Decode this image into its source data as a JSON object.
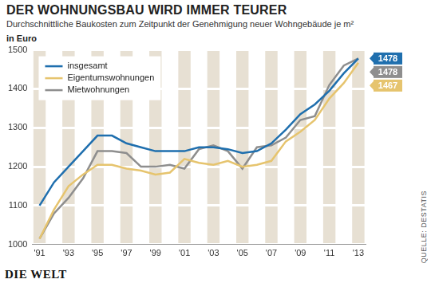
{
  "chart_data": {
    "type": "line",
    "title": "DER WOHNUNGSBAU WIRD IMMER TEURER",
    "subtitle": "Durchschnittliche Baukosten zum Zeitpunkt der Genehmigung neuer Wohngebäude je m²",
    "y_label": "in Euro",
    "source": "QUELLE: DESTATIS",
    "brand": "DIE WELT",
    "categories": [
      "'91",
      null,
      "'93",
      null,
      "'95",
      null,
      "'97",
      null,
      "'99",
      null,
      "'01",
      null,
      "'03",
      null,
      "'05",
      null,
      "'07",
      null,
      "'09",
      null,
      "'11",
      null,
      "'13"
    ],
    "series": [
      {
        "name": "insgesamt",
        "color": "#1f6fae",
        "values": [
          1100,
          1160,
          1200,
          1240,
          1280,
          1280,
          1260,
          1250,
          1240,
          1240,
          1240,
          1250,
          1250,
          1245,
          1235,
          1240,
          1260,
          1295,
          1335,
          1360,
          1395,
          1440,
          1478
        ],
        "value_labels": [
          null,
          null,
          null,
          null,
          null,
          null,
          null,
          null,
          null,
          null,
          null,
          null,
          null,
          null,
          null,
          null,
          null,
          null,
          null,
          null,
          null,
          null,
          "1478"
        ]
      },
      {
        "name": "Eigentumswohnungen",
        "color": "#e6c46e",
        "values": [
          1015,
          1090,
          1150,
          1180,
          1205,
          1205,
          1195,
          1190,
          1180,
          1185,
          1220,
          1210,
          1205,
          1215,
          1200,
          1205,
          1215,
          1265,
          1290,
          1320,
          1375,
          1415,
          1467
        ],
        "value_labels": [
          null,
          null,
          null,
          null,
          null,
          null,
          null,
          null,
          null,
          null,
          null,
          null,
          null,
          null,
          null,
          null,
          null,
          null,
          null,
          null,
          null,
          null,
          "1467"
        ]
      },
      {
        "name": "Mietwohnungen",
        "color": "#8e8e8e",
        "values": [
          1015,
          1080,
          1120,
          1170,
          1240,
          1240,
          1235,
          1200,
          1200,
          1205,
          1195,
          1245,
          1255,
          1240,
          1195,
          1250,
          1255,
          1275,
          1320,
          1330,
          1410,
          1460,
          1478
        ],
        "value_labels": [
          null,
          null,
          null,
          null,
          null,
          null,
          null,
          null,
          null,
          null,
          null,
          null,
          null,
          null,
          null,
          null,
          null,
          null,
          null,
          null,
          null,
          null,
          "1478"
        ]
      }
    ],
    "ylim": [
      1000,
      1500
    ],
    "yticks": [
      1000,
      1100,
      1200,
      1300,
      1400,
      1500
    ],
    "grid": true,
    "legend": "upper left"
  }
}
